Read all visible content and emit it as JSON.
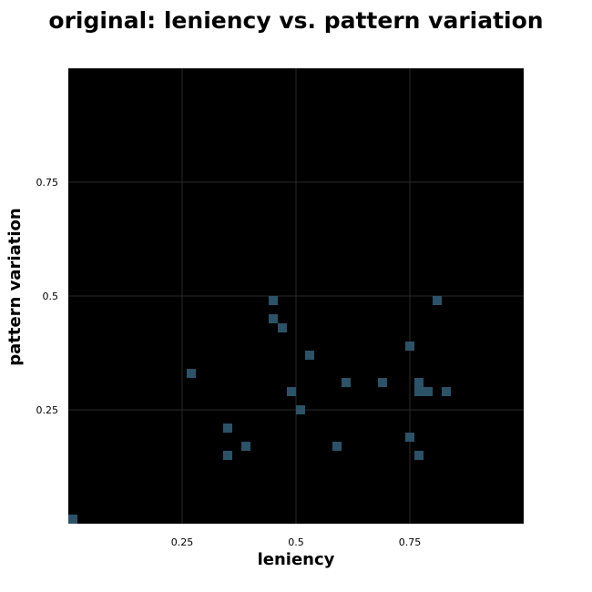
{
  "chart_data": {
    "type": "scatter",
    "title": "original: leniency vs. pattern variation",
    "xlabel": "leniency",
    "ylabel": "pattern variation",
    "xlim": [
      0,
      1
    ],
    "ylim": [
      0,
      1
    ],
    "x_ticks": [
      0.25,
      0.5,
      0.75
    ],
    "x_tick_labels": [
      "0.25",
      "0.5",
      "0.75"
    ],
    "y_ticks": [
      0.25,
      0.5,
      0.75
    ],
    "y_tick_labels": [
      "0.25",
      "0.5",
      "0.75"
    ],
    "grid": true,
    "colors": {
      "plot_background": "#000000",
      "grid": "#2a2a2a",
      "marker": "#2c5268"
    },
    "points": [
      {
        "x": 0.01,
        "y": 0.01
      },
      {
        "x": 0.27,
        "y": 0.33
      },
      {
        "x": 0.35,
        "y": 0.21
      },
      {
        "x": 0.35,
        "y": 0.15
      },
      {
        "x": 0.39,
        "y": 0.17
      },
      {
        "x": 0.45,
        "y": 0.49
      },
      {
        "x": 0.45,
        "y": 0.45
      },
      {
        "x": 0.47,
        "y": 0.43
      },
      {
        "x": 0.49,
        "y": 0.29
      },
      {
        "x": 0.51,
        "y": 0.25
      },
      {
        "x": 0.53,
        "y": 0.37
      },
      {
        "x": 0.59,
        "y": 0.17
      },
      {
        "x": 0.61,
        "y": 0.31
      },
      {
        "x": 0.69,
        "y": 0.31
      },
      {
        "x": 0.75,
        "y": 0.39
      },
      {
        "x": 0.75,
        "y": 0.19
      },
      {
        "x": 0.77,
        "y": 0.31
      },
      {
        "x": 0.77,
        "y": 0.29
      },
      {
        "x": 0.77,
        "y": 0.15
      },
      {
        "x": 0.79,
        "y": 0.29
      },
      {
        "x": 0.81,
        "y": 0.49
      },
      {
        "x": 0.83,
        "y": 0.29
      }
    ]
  }
}
